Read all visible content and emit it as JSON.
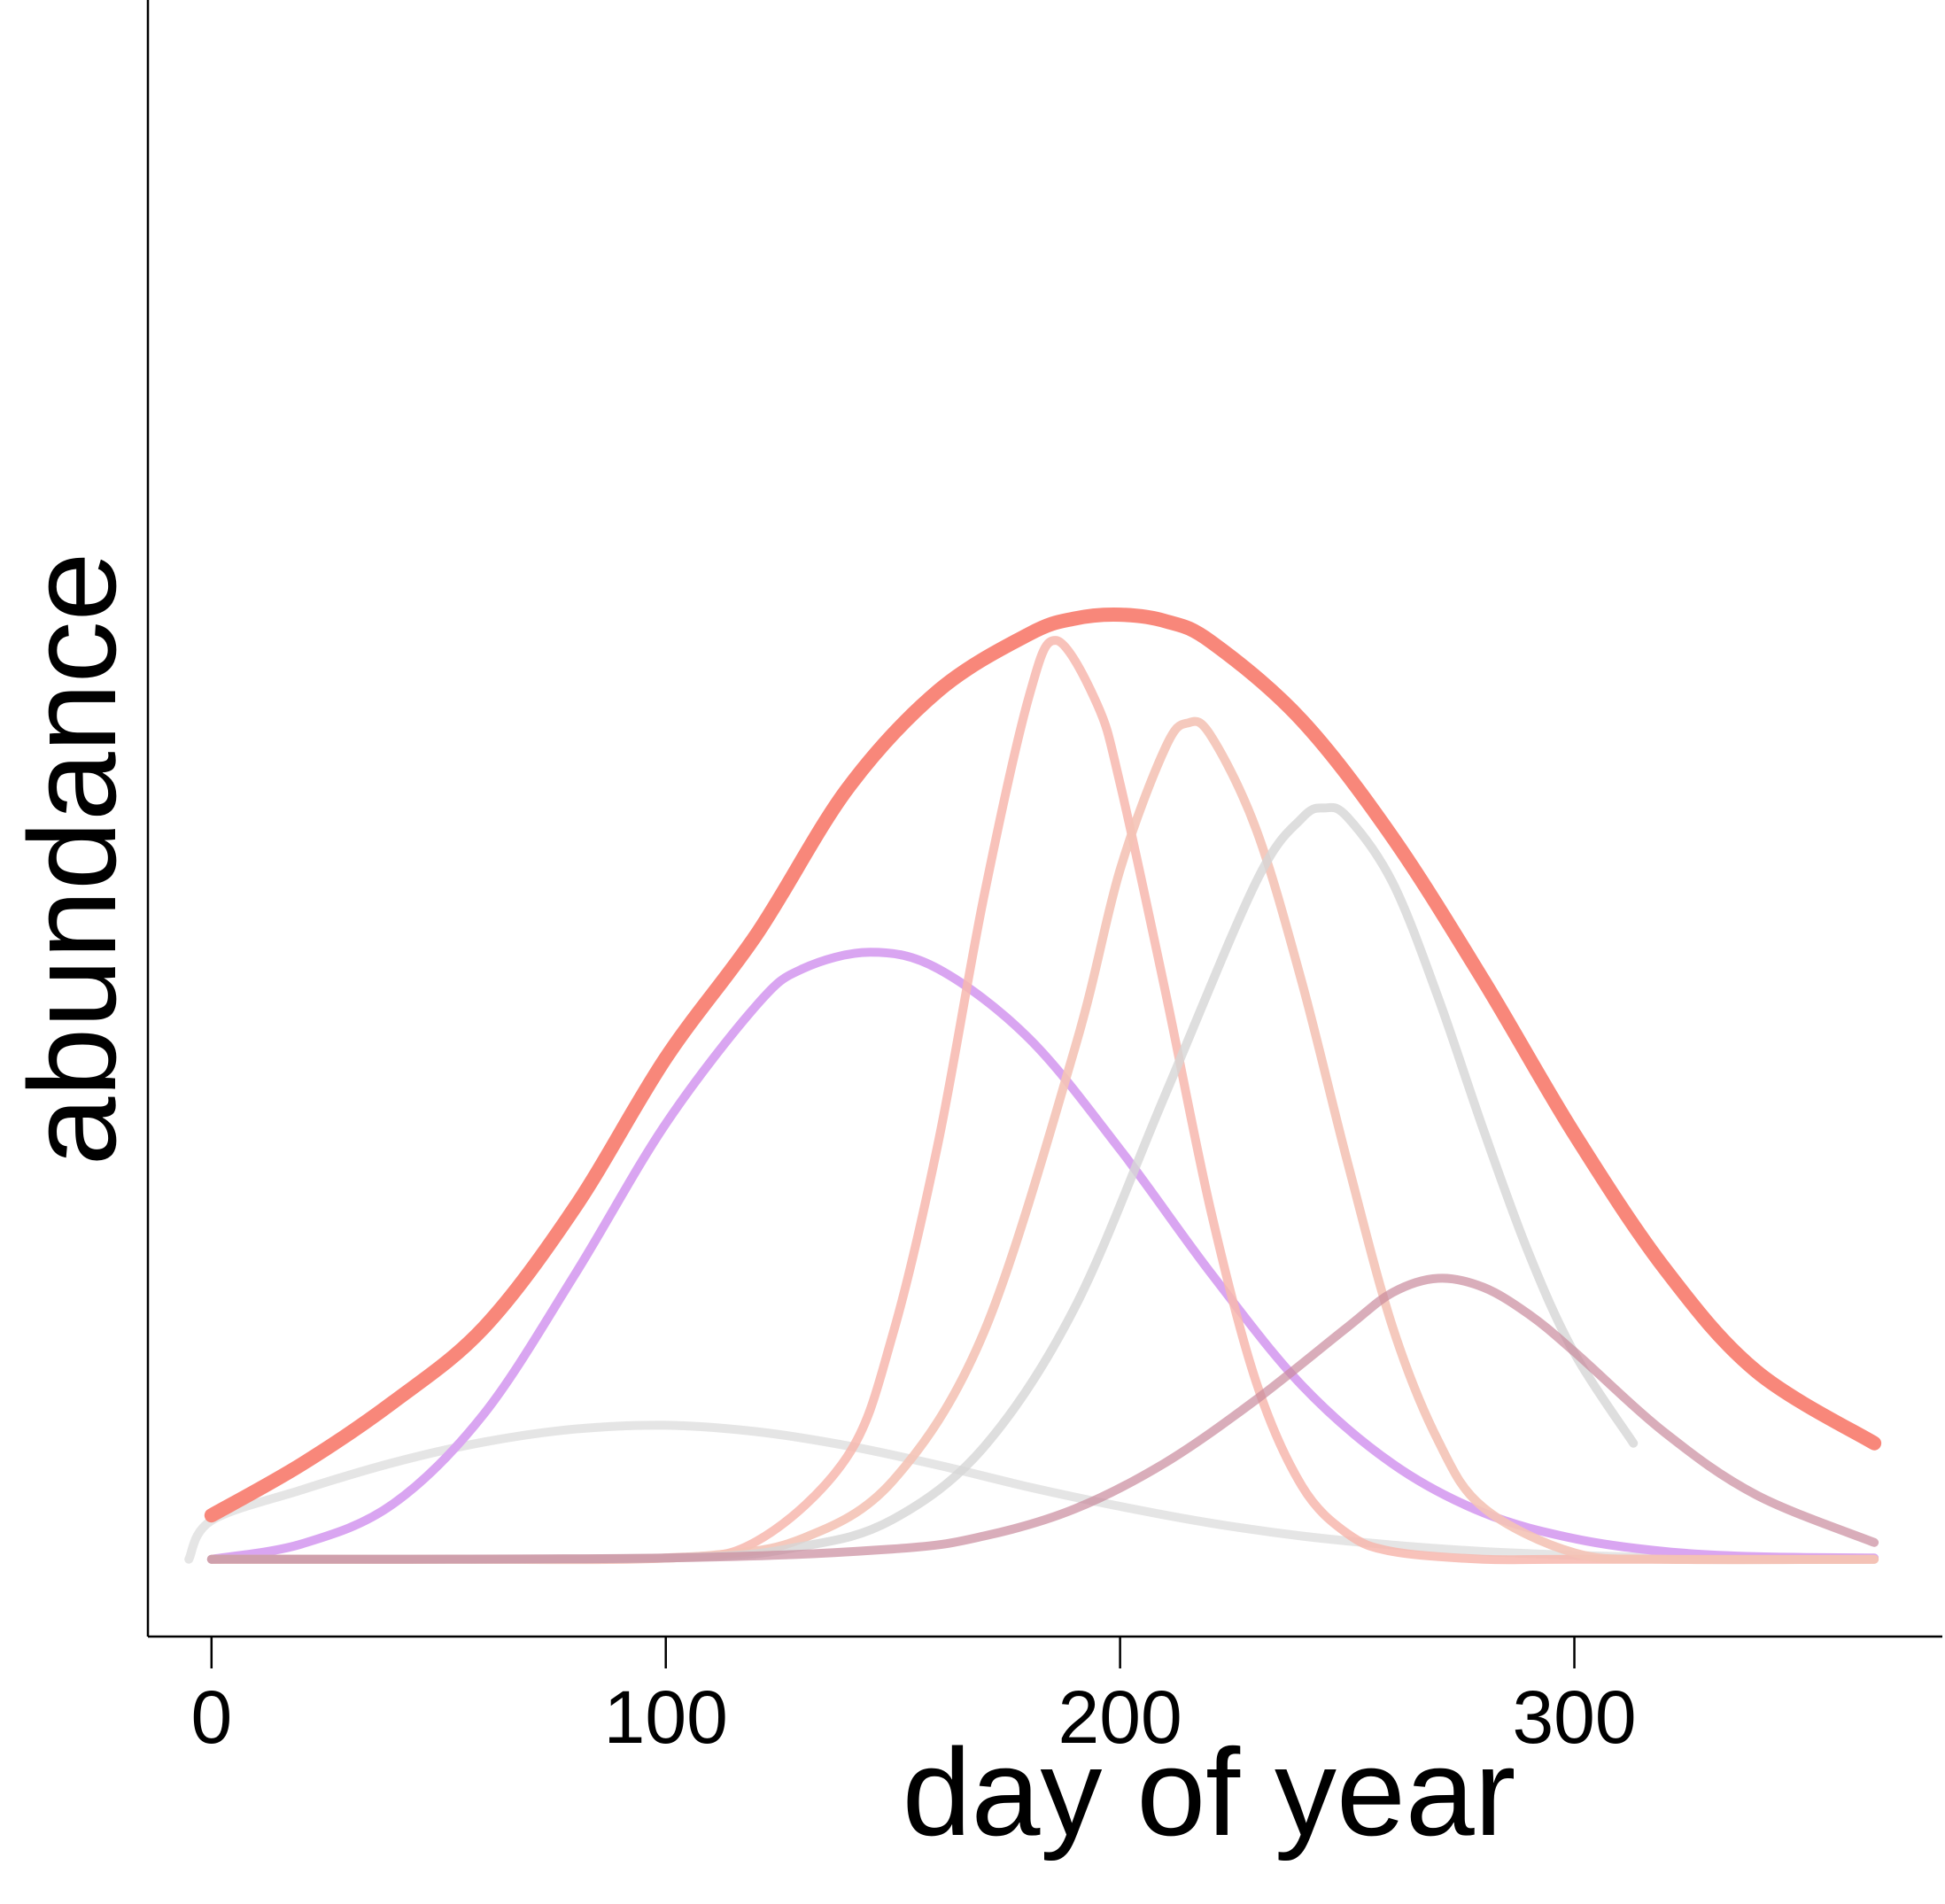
{
  "chart_data": {
    "type": "line",
    "title": "",
    "xlabel": "day of year",
    "ylabel": "abundance",
    "xlim": [
      -14,
      381
    ],
    "ylim": [
      -0.06,
      1.21
    ],
    "xticks": [
      0,
      100,
      200,
      300
    ],
    "yticks": [],
    "grid": false,
    "legend": "none",
    "series": [
      {
        "color": "#e0e0e0",
        "opacity": 0.85,
        "x": [
          -5,
          0,
          20,
          40,
          60,
          80,
          100,
          120,
          140,
          160,
          180,
          200,
          220,
          240,
          260,
          280,
          300,
          320,
          340,
          366
        ],
        "y": [
          0.0,
          0.03,
          0.054,
          0.075,
          0.091,
          0.101,
          0.104,
          0.099,
          0.088,
          0.073,
          0.056,
          0.041,
          0.028,
          0.018,
          0.011,
          0.006,
          0.003,
          0.001,
          0.0,
          0.0
        ]
      },
      {
        "color": "#d9a5f1",
        "opacity": 1,
        "x": [
          0,
          20,
          40,
          60,
          80,
          100,
          120,
          130,
          145,
          160,
          180,
          200,
          220,
          240,
          260,
          280,
          300,
          320,
          340,
          366
        ],
        "y": [
          0.0,
          0.012,
          0.043,
          0.113,
          0.221,
          0.338,
          0.43,
          0.458,
          0.471,
          0.458,
          0.404,
          0.318,
          0.222,
          0.135,
          0.074,
          0.036,
          0.016,
          0.006,
          0.002,
          0.001
        ]
      },
      {
        "color": "#f7b7ae",
        "opacity": 0.85,
        "x": [
          0,
          50,
          100,
          120,
          140,
          150,
          160,
          170,
          180,
          186,
          195,
          200,
          210,
          220,
          230,
          240,
          250,
          260,
          280,
          300,
          366
        ],
        "y": [
          0.0,
          0.0,
          0.001,
          0.014,
          0.08,
          0.175,
          0.324,
          0.514,
          0.67,
          0.713,
          0.663,
          0.602,
          0.44,
          0.27,
          0.137,
          0.057,
          0.02,
          0.006,
          0.0,
          0.0,
          0.0
        ]
      },
      {
        "color": "#f4c3b6",
        "opacity": 0.9,
        "x": [
          0,
          80,
          110,
          130,
          150,
          170,
          190,
          200,
          210,
          215,
          220,
          230,
          240,
          250,
          260,
          270,
          280,
          300,
          320,
          366
        ],
        "y": [
          0.0,
          0.0,
          0.003,
          0.016,
          0.061,
          0.176,
          0.396,
          0.535,
          0.63,
          0.649,
          0.639,
          0.566,
          0.448,
          0.309,
          0.18,
          0.092,
          0.04,
          0.005,
          0.0,
          0.0
        ]
      },
      {
        "color": "#d6d6d6",
        "opacity": 0.8,
        "x": [
          0,
          100,
          130,
          150,
          170,
          190,
          210,
          230,
          240,
          245,
          250,
          260,
          270,
          280,
          290,
          300,
          313
        ],
        "y": [
          0.0,
          0.001,
          0.01,
          0.031,
          0.087,
          0.195,
          0.361,
          0.526,
          0.575,
          0.583,
          0.576,
          0.525,
          0.436,
          0.333,
          0.237,
          0.16,
          0.09
        ]
      },
      {
        "color": "#c98a9c",
        "opacity": 0.7,
        "x": [
          0,
          100,
          150,
          170,
          190,
          210,
          230,
          250,
          260,
          270,
          280,
          290,
          300,
          320,
          340,
          366
        ],
        "y": [
          0.0,
          0.001,
          0.008,
          0.018,
          0.039,
          0.075,
          0.124,
          0.18,
          0.207,
          0.218,
          0.211,
          0.19,
          0.161,
          0.098,
          0.05,
          0.013
        ]
      },
      {
        "color": "#f8877a",
        "opacity": 1,
        "x": [
          0,
          20,
          40,
          60,
          80,
          100,
          120,
          140,
          160,
          180,
          190,
          200,
          210,
          220,
          240,
          260,
          280,
          300,
          320,
          340,
          366
        ],
        "y": [
          0.034,
          0.074,
          0.122,
          0.18,
          0.273,
          0.389,
          0.485,
          0.598,
          0.674,
          0.718,
          0.73,
          0.733,
          0.728,
          0.712,
          0.651,
          0.56,
          0.449,
          0.33,
          0.225,
          0.146,
          0.09
        ]
      }
    ]
  }
}
